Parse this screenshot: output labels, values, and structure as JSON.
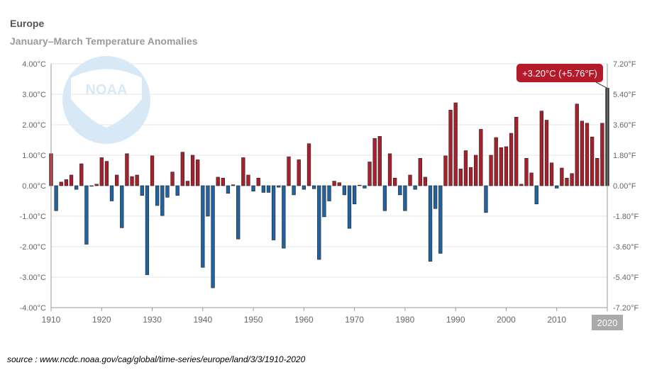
{
  "chart_data": {
    "type": "bar",
    "title": "Europe",
    "subtitle": "January–March Temperature Anomalies",
    "source": "source : www.ncdc.noaa.gov/cag/global/time-series/europe/land/3/3/1910-2020",
    "watermark": "NOAA",
    "x_start": 1910,
    "x_end": 2020,
    "x_ticks": [
      "1910",
      "1920",
      "1930",
      "1940",
      "1950",
      "1960",
      "1970",
      "1980",
      "1990",
      "2000",
      "2010",
      "2020"
    ],
    "left_axis": {
      "ylim": [
        -4,
        4
      ],
      "ticks": [
        "-4.00°C",
        "-3.00°C",
        "-2.00°C",
        "-1.00°C",
        "0.00°C",
        "1.00°C",
        "2.00°C",
        "3.00°C",
        "4.00°C"
      ]
    },
    "right_axis": {
      "ticks": [
        "-7.20°F",
        "-5.40°F",
        "-3.60°F",
        "-1.80°F",
        "0.00°F",
        "1.80°F",
        "3.60°F",
        "5.40°F",
        "7.20°F"
      ]
    },
    "colors": {
      "positive": "#a8202c",
      "negative": "#2162a1",
      "highlight": "#333333",
      "tooltip": "#b51a2a",
      "grid": "#e6e6e6",
      "axis": "#999999"
    },
    "tooltip": {
      "year": 2020,
      "text": "+3.20°C (+5.76°F)"
    },
    "highlight_label": "2020",
    "series": [
      {
        "years": [
          1910,
          1911,
          1912,
          1913,
          1914,
          1915,
          1916,
          1917,
          1918,
          1919,
          1920,
          1921,
          1922,
          1923,
          1924,
          1925,
          1926,
          1927,
          1928,
          1929,
          1930,
          1931,
          1932,
          1933,
          1934,
          1935,
          1936,
          1937,
          1938,
          1939,
          1940,
          1941,
          1942,
          1943,
          1944,
          1945,
          1946,
          1947,
          1948,
          1949,
          1950,
          1951,
          1952,
          1953,
          1954,
          1955,
          1956,
          1957,
          1958,
          1959,
          1960,
          1961,
          1962,
          1963,
          1964,
          1965,
          1966,
          1967,
          1968,
          1969,
          1970,
          1971,
          1972,
          1973,
          1974,
          1975,
          1976,
          1977,
          1978,
          1979,
          1980,
          1981,
          1982,
          1983,
          1984,
          1985,
          1986,
          1987,
          1988,
          1989,
          1990,
          1991,
          1992,
          1993,
          1994,
          1995,
          1996,
          1997,
          1998,
          1999,
          2000,
          2001,
          2002,
          2003,
          2004,
          2005,
          2006,
          2007,
          2008,
          2009,
          2010,
          2011,
          2012,
          2013,
          2014,
          2015,
          2016,
          2017,
          2018,
          2019,
          2020
        ],
        "values": [
          1.05,
          -0.82,
          0.12,
          0.2,
          0.35,
          -0.12,
          0.72,
          -1.92,
          -0.02,
          0.05,
          0.92,
          0.8,
          -0.5,
          0.35,
          -1.38,
          1.05,
          0.3,
          0.35,
          -0.32,
          -2.92,
          0.98,
          -0.65,
          -0.98,
          -0.38,
          0.45,
          -0.32,
          1.1,
          0.15,
          1.0,
          0.85,
          -2.68,
          -1.0,
          -3.35,
          0.28,
          0.25,
          -0.25,
          0.03,
          -1.75,
          0.92,
          0.35,
          -0.18,
          0.25,
          -0.22,
          -0.22,
          -1.78,
          -0.05,
          -2.05,
          0.95,
          -0.3,
          0.85,
          -0.12,
          1.38,
          -0.1,
          -2.42,
          -1.02,
          -0.5,
          0.15,
          0.1,
          -0.3,
          -1.4,
          -0.6,
          0.02,
          -0.08,
          0.78,
          1.55,
          1.62,
          -0.82,
          1.05,
          0.25,
          -0.3,
          -0.82,
          0.35,
          -0.12,
          0.9,
          0.28,
          -2.48,
          -0.75,
          -2.22,
          0.98,
          2.48,
          2.72,
          0.55,
          1.15,
          0.6,
          1.0,
          1.85,
          -0.88,
          1.0,
          1.58,
          1.25,
          1.28,
          1.72,
          2.25,
          0.05,
          0.9,
          0.42,
          -0.6,
          2.45,
          2.15,
          0.75,
          -0.08,
          0.58,
          0.25,
          0.4,
          2.68,
          2.12,
          2.05,
          1.6,
          0.9,
          2.05,
          3.2
        ]
      }
    ]
  }
}
